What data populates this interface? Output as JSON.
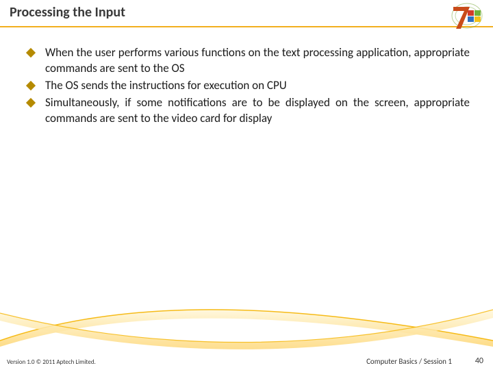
{
  "header": {
    "title": "Processing the Input",
    "title_color": "#3a3a3a",
    "underline_color": "#f2af1e",
    "logo": {
      "outer_color": "#7aa83a",
      "seven_color": "#c94b1a",
      "flag_colors": [
        "#d23b2a",
        "#6fb23a",
        "#2f6fc0",
        "#f2c118"
      ]
    }
  },
  "content": {
    "bullet_color": "#b58a00",
    "text_color": "#1a1a1a",
    "items": [
      "When the user performs various functions on the text processing application, appropriate commands are sent to the OS",
      "The OS sends the instructions for execution on CPU",
      "Simultaneously, if some notifications are to be displayed on the screen, appropriate commands are sent to the video card for display"
    ]
  },
  "swoosh": {
    "fill_top": "#fff3c8",
    "fill_bottom": "#fdd87a",
    "stroke": "#f5b400"
  },
  "footer": {
    "left": "Version 1.0 © 2011 Aptech Limited.",
    "center": "Computer Basics / Session 1",
    "page": "40",
    "text_color": "#333333"
  }
}
